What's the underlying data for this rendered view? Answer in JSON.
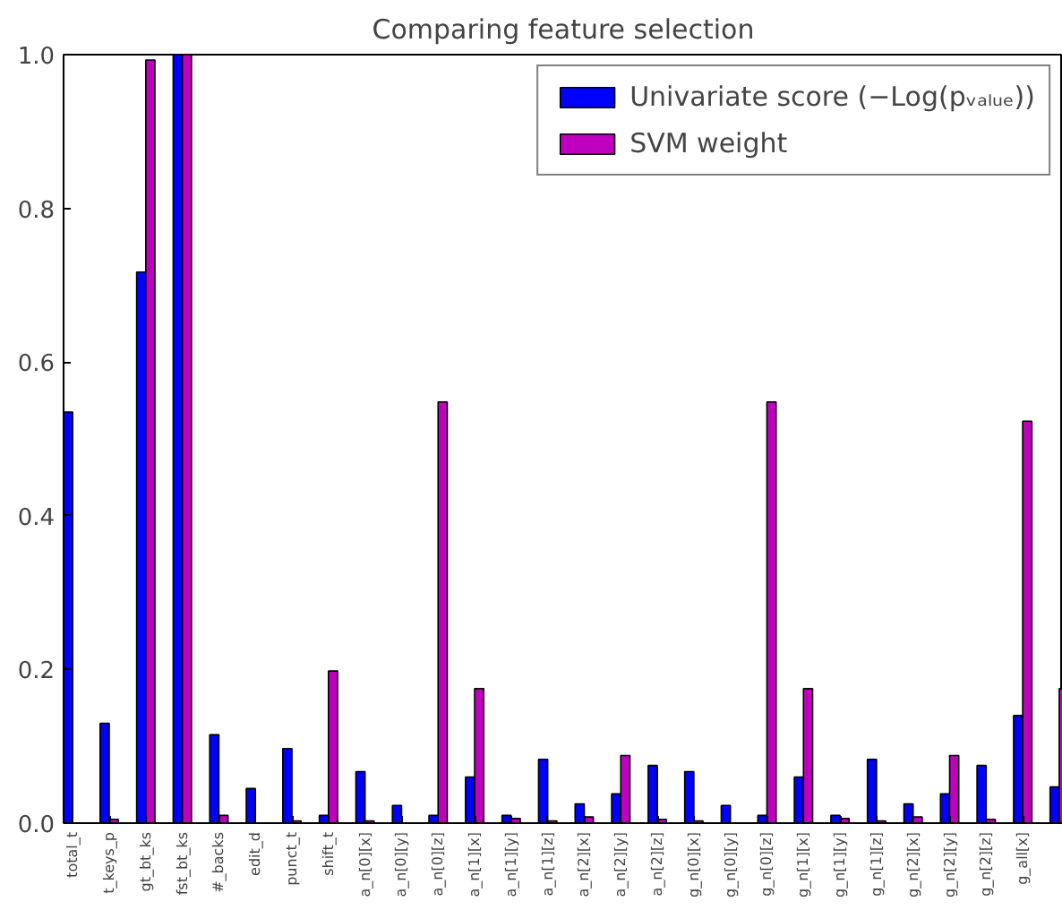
{
  "chart_data": {
    "type": "bar",
    "title": "Comparing feature selection",
    "categories": [
      "total_t",
      "t_keys_p",
      "gt_bt_ks",
      "fst_bt_ks",
      "#_backs",
      "edit_d",
      "punct_t",
      "shift_t",
      "a_n[0][x]",
      "a_n[0][y]",
      "a_n[0][z]",
      "a_n[1][x]",
      "a_n[1][y]",
      "a_n[1][z]",
      "a_n[2][x]",
      "a_n[2][y]",
      "a_n[2][z]",
      "g_n[0][x]",
      "g_n[0][y]",
      "g_n[0][z]",
      "g_n[1][x]",
      "g_n[1][y]",
      "g_n[1][z]",
      "g_n[2][x]",
      "g_n[2][y]",
      "g_n[2][z]",
      "g_all[x]",
      null
    ],
    "series": [
      {
        "name": "Univariate score (−Log(pᵥₐₗᵤₑ))",
        "color": "#0000ff",
        "values": [
          0.535,
          0.13,
          0.717,
          1.0,
          0.115,
          0.045,
          0.097,
          0.01,
          0.067,
          0.023,
          0.01,
          0.06,
          0.01,
          0.083,
          0.025,
          0.038,
          0.075,
          0.067,
          0.023,
          0.01,
          0.06,
          0.01,
          0.083,
          0.025,
          0.038,
          0.075,
          0.14,
          0.047
        ]
      },
      {
        "name": "SVM weight",
        "color": "#bf00bf",
        "values": [
          null,
          0.005,
          0.993,
          1.0,
          0.01,
          null,
          0.003,
          0.198,
          0.003,
          null,
          0.548,
          0.175,
          0.006,
          0.003,
          0.008,
          0.088,
          0.005,
          0.003,
          null,
          0.548,
          0.175,
          0.006,
          0.003,
          0.008,
          0.088,
          0.005,
          0.523,
          0.175
        ]
      }
    ],
    "ylim": [
      0,
      1
    ],
    "yticks": [
      {
        "value": 0,
        "label": "0.0"
      },
      {
        "value": 0.2,
        "label": "0.2"
      },
      {
        "value": 0.4,
        "label": "0.4"
      },
      {
        "value": 0.6,
        "label": "0.6"
      },
      {
        "value": 0.8,
        "label": "0.8"
      },
      {
        "value": 1.0,
        "label": "1.0"
      }
    ],
    "grid": false,
    "legend": "top right"
  }
}
